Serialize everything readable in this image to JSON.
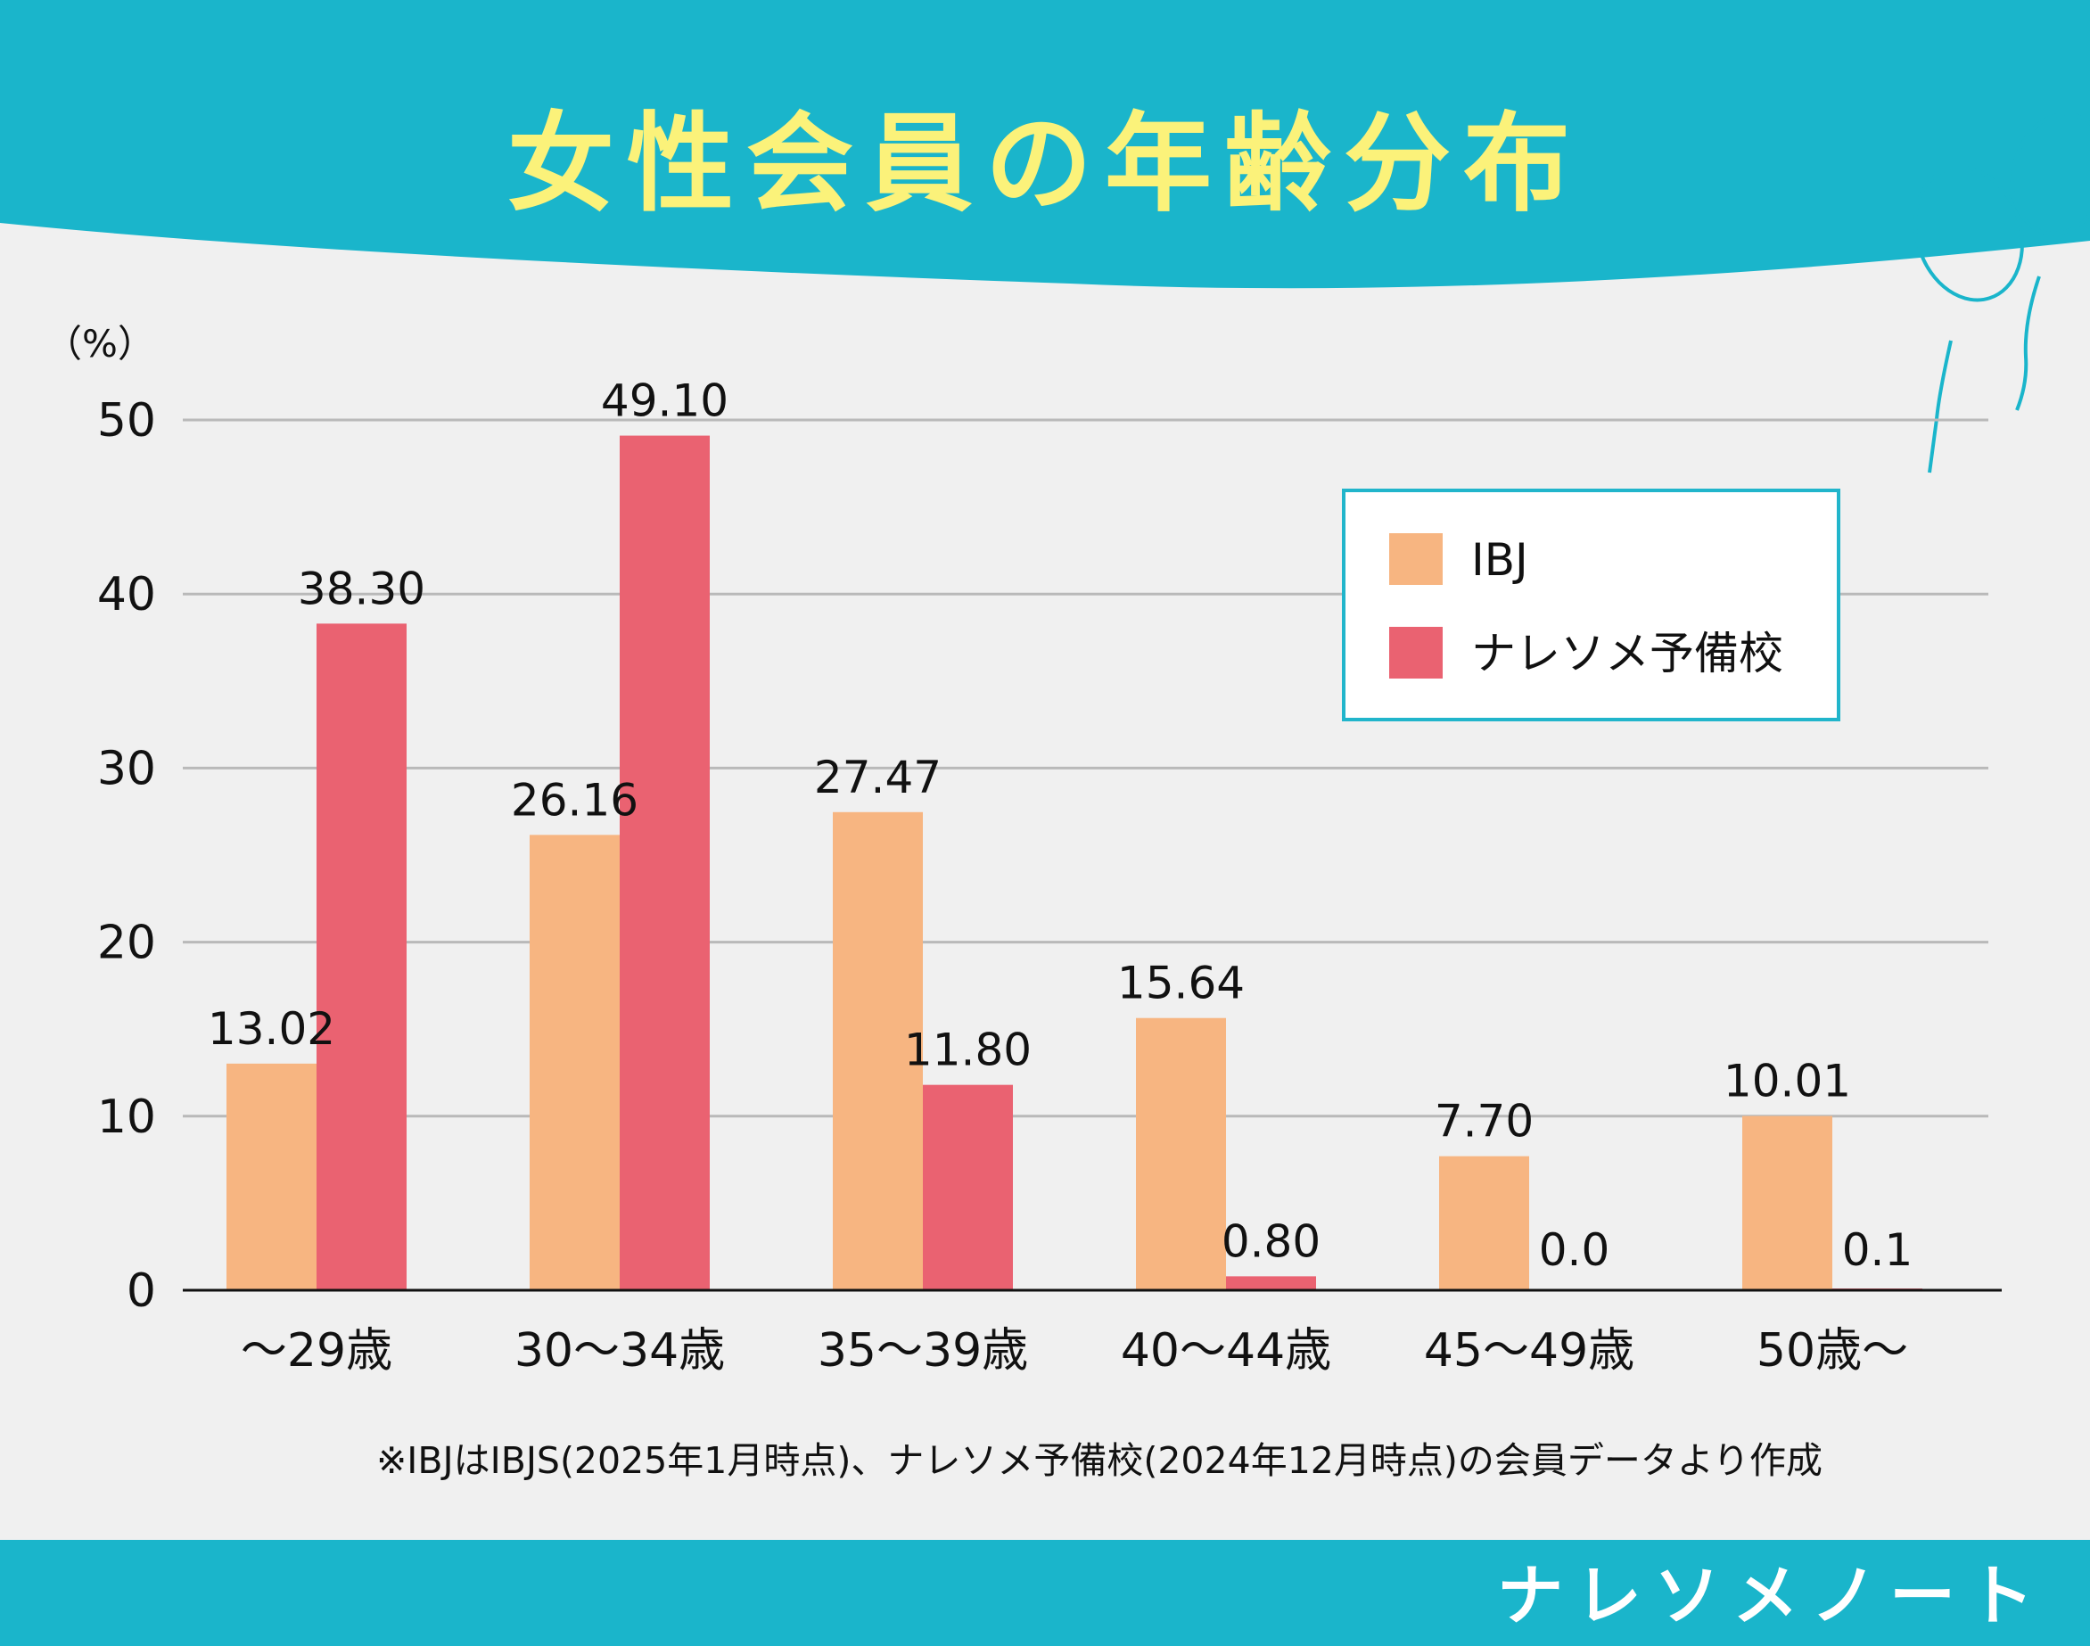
{
  "title": "女性会員の年齢分布",
  "unit_label": "（%）",
  "footnote": "※IBJはIBJS(2025年1月時点)、ナレソメ予備校(2024年12月時点)の会員データより作成",
  "brand": "ナレソメノート",
  "colors": {
    "header": "#1ab5cb",
    "ibj": "#f7b581",
    "naresome": "#ea6271",
    "legend_border": "#21b5cb",
    "grid": "#b9b9b9"
  },
  "chart_data": {
    "type": "bar",
    "categories": [
      "～29歳",
      "30～34歳",
      "35～39歳",
      "40～44歳",
      "45～49歳",
      "50歳～"
    ],
    "series": [
      {
        "name": "IBJ",
        "values": [
          13.02,
          26.16,
          27.47,
          15.64,
          7.7,
          10.01
        ],
        "labels": [
          "13.02",
          "26.16",
          "27.47",
          "15.64",
          "7.70",
          "10.01"
        ]
      },
      {
        "name": "ナレソメ予備校",
        "values": [
          38.3,
          49.1,
          11.8,
          0.8,
          0.0,
          0.1
        ],
        "labels": [
          "38.30",
          "49.10",
          "11.80",
          "0.80",
          "0.0",
          "0.1"
        ]
      }
    ],
    "yticks": [
      "0",
      "10",
      "20",
      "30",
      "40",
      "50"
    ],
    "ylim": [
      0,
      50
    ],
    "grid": true,
    "legend_position": "top-right"
  }
}
